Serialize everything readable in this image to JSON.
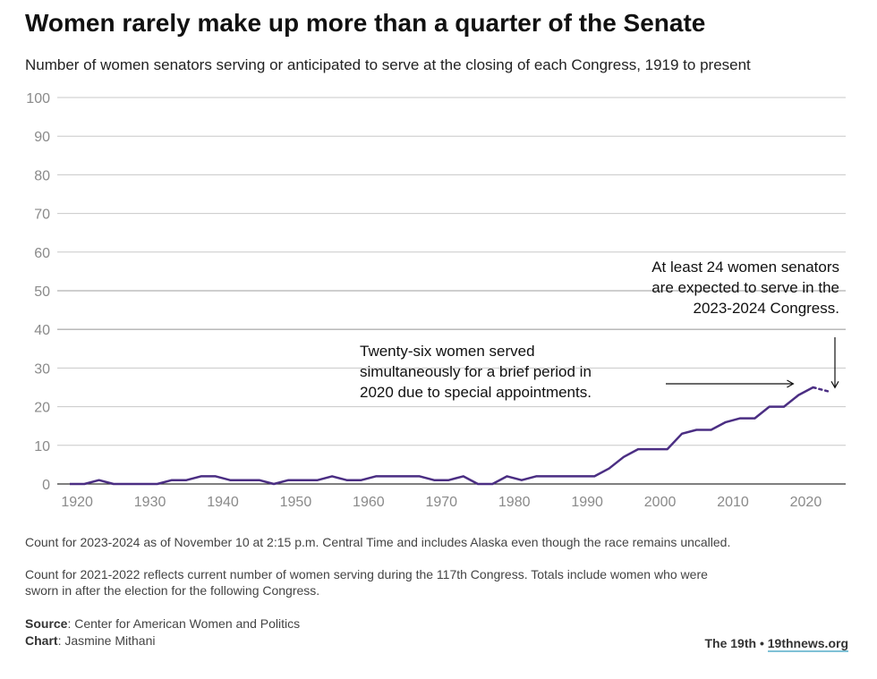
{
  "title": "Women rarely make up more than a quarter of the Senate",
  "subtitle": "Number of women senators serving or anticipated to serve at the closing of each Congress, 1919 to present",
  "notes": [
    "Count for 2023-2024 as of November 10 at 2:15 p.m. Central Time and includes Alaska even though the race remains uncalled.",
    "Count for 2021-2022 reflects current number of women serving during the 117th Congress. Totals include women who were",
    "sworn in after the election for the following Congress."
  ],
  "source_label": "Source",
  "source_text": ": Center for American Women and Politics",
  "chart_label": "Chart",
  "chart_text": ": Jasmine Mithani",
  "brand_name": "The 19th",
  "brand_separator": "•",
  "brand_site": "19thnews.org",
  "colors": {
    "line": "#4b2e83",
    "grid": "#c8c8c8",
    "tick": "#8a8a8a"
  },
  "chart_data": {
    "type": "line",
    "title": "Women rarely make up more than a quarter of the Senate",
    "xlabel": "",
    "ylabel": "",
    "ylim": [
      0,
      100
    ],
    "yticks": [
      0,
      10,
      20,
      30,
      40,
      50,
      60,
      70,
      80,
      90,
      100
    ],
    "xlim": [
      1918,
      2025
    ],
    "xticks": [
      1920,
      1930,
      1940,
      1950,
      1960,
      1970,
      1980,
      1990,
      2000,
      2010,
      2020
    ],
    "grid": true,
    "series": [
      {
        "style": "solid",
        "x": [
          1919,
          1921,
          1923,
          1925,
          1927,
          1929,
          1931,
          1933,
          1935,
          1937,
          1939,
          1941,
          1943,
          1945,
          1947,
          1949,
          1951,
          1953,
          1955,
          1957,
          1959,
          1961,
          1963,
          1965,
          1967,
          1969,
          1971,
          1973,
          1975,
          1977,
          1979,
          1981,
          1983,
          1985,
          1987,
          1989,
          1991,
          1993,
          1995,
          1997,
          1999,
          2001,
          2003,
          2005,
          2007,
          2009,
          2011,
          2013,
          2015,
          2017,
          2019,
          2021
        ],
        "y": [
          0,
          0,
          1,
          0,
          0,
          0,
          0,
          1,
          1,
          2,
          2,
          1,
          1,
          1,
          0,
          1,
          1,
          1,
          2,
          1,
          1,
          2,
          2,
          2,
          2,
          1,
          1,
          2,
          0,
          0,
          2,
          1,
          2,
          2,
          2,
          2,
          2,
          4,
          7,
          9,
          9,
          9,
          13,
          14,
          14,
          16,
          17,
          17,
          20,
          20,
          23,
          25
        ]
      },
      {
        "style": "dotted",
        "x": [
          2021,
          2023
        ],
        "y": [
          25,
          24
        ]
      }
    ],
    "annotations": [
      {
        "lines": [
          "Twenty-six women served",
          "simultaneously for a brief period in",
          "2020 due to special appointments."
        ],
        "arrow_to": {
          "x": 2020,
          "y": 26
        }
      },
      {
        "lines": [
          "At least 24 women senators",
          "are expected to serve in the",
          "2023-2024 Congress."
        ],
        "arrow_to": {
          "x": 2023.5,
          "y": 24
        }
      }
    ]
  }
}
